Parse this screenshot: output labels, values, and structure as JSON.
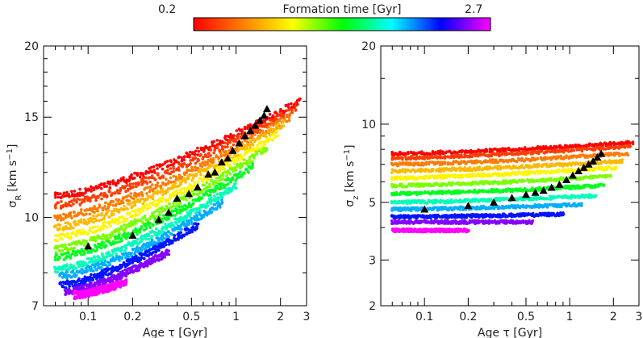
{
  "colorbar": {
    "label": "Formation time [Gyr]",
    "min_label": "0.2",
    "max_label": "2.7",
    "min": 0.2,
    "max": 2.7,
    "colors": [
      "#ff0000",
      "#ff8000",
      "#ffff00",
      "#00ff00",
      "#00ffff",
      "#0000ff",
      "#ff00ff"
    ]
  },
  "chart_data": [
    {
      "type": "scatter",
      "xlabel": "Age τ [Gyr]",
      "ylabel": "σ",
      "ylabel_sub": "R",
      "ylabel_unit": "[km s",
      "ylabel_exp": "−1",
      "ylabel_close": "]",
      "xscale": "log",
      "yscale": "log",
      "xlim": [
        0.05,
        3
      ],
      "ylim": [
        7,
        20
      ],
      "xticks": [
        {
          "v": 0.1,
          "label": "0.1"
        },
        {
          "v": 0.2,
          "label": "0.2"
        },
        {
          "v": 0.5,
          "label": "0.5"
        },
        {
          "v": 1,
          "label": "1"
        },
        {
          "v": 2,
          "label": "2"
        },
        {
          "v": 3,
          "label": "3"
        }
      ],
      "yticks": [
        {
          "v": 7,
          "label": "7"
        },
        {
          "v": 10,
          "label": "10"
        },
        {
          "v": 15,
          "label": "15"
        },
        {
          "v": 20,
          "label": "20"
        }
      ],
      "grid": false,
      "bands": [
        {
          "tf": 0.2,
          "x0": 0.06,
          "y0": 10.9,
          "x1": 2.7,
          "y1": 16.0
        },
        {
          "tf": 0.4,
          "x0": 0.06,
          "y0": 10.5,
          "x1": 2.5,
          "y1": 15.5
        },
        {
          "tf": 0.6,
          "x0": 0.06,
          "y0": 10.0,
          "x1": 2.3,
          "y1": 15.0
        },
        {
          "tf": 0.8,
          "x0": 0.06,
          "y0": 9.6,
          "x1": 2.1,
          "y1": 14.6
        },
        {
          "tf": 1.0,
          "x0": 0.06,
          "y0": 9.2,
          "x1": 1.9,
          "y1": 14.0
        },
        {
          "tf": 1.25,
          "x0": 0.06,
          "y0": 8.8,
          "x1": 1.6,
          "y1": 13.2
        },
        {
          "tf": 1.5,
          "x0": 0.06,
          "y0": 8.5,
          "x1": 1.3,
          "y1": 12.3
        },
        {
          "tf": 1.75,
          "x0": 0.06,
          "y0": 8.1,
          "x1": 1.0,
          "y1": 11.4
        },
        {
          "tf": 2.0,
          "x0": 0.065,
          "y0": 7.9,
          "x1": 0.8,
          "y1": 10.6
        },
        {
          "tf": 2.25,
          "x0": 0.065,
          "y0": 7.6,
          "x1": 0.55,
          "y1": 9.7
        },
        {
          "tf": 2.5,
          "x0": 0.07,
          "y0": 7.4,
          "x1": 0.35,
          "y1": 8.7
        },
        {
          "tf": 2.7,
          "x0": 0.08,
          "y0": 7.3,
          "x1": 0.18,
          "y1": 7.7
        }
      ],
      "triangles": {
        "x": [
          0.1,
          0.2,
          0.3,
          0.35,
          0.4,
          0.48,
          0.55,
          0.65,
          0.72,
          0.8,
          0.88,
          0.95,
          1.05,
          1.15,
          1.25,
          1.35,
          1.45,
          1.55,
          1.62
        ],
        "y": [
          8.9,
          9.3,
          9.9,
          10.2,
          10.8,
          11.0,
          11.3,
          11.9,
          12.0,
          12.5,
          12.7,
          13.1,
          13.5,
          13.9,
          14.2,
          14.5,
          14.8,
          15.1,
          15.5
        ]
      }
    },
    {
      "type": "scatter",
      "xlabel": "Age τ [Gyr]",
      "ylabel": "σ",
      "ylabel_sub": "z",
      "ylabel_unit": "[km s",
      "ylabel_exp": "−1",
      "ylabel_close": "]",
      "xscale": "log",
      "yscale": "log",
      "xlim": [
        0.05,
        3
      ],
      "ylim": [
        2,
        20
      ],
      "xticks": [
        {
          "v": 0.1,
          "label": "0.1"
        },
        {
          "v": 0.2,
          "label": "0.2"
        },
        {
          "v": 0.5,
          "label": "0.5"
        },
        {
          "v": 1,
          "label": "1"
        },
        {
          "v": 2,
          "label": "2"
        },
        {
          "v": 3,
          "label": "3"
        }
      ],
      "yticks": [
        {
          "v": 2,
          "label": "2"
        },
        {
          "v": 3,
          "label": "3"
        },
        {
          "v": 5,
          "label": "5"
        },
        {
          "v": 10,
          "label": "10"
        },
        {
          "v": 20,
          "label": "20"
        }
      ],
      "grid": false,
      "bands": [
        {
          "tf": 0.2,
          "x0": 0.06,
          "y0": 7.7,
          "x1": 2.7,
          "y1": 8.5
        },
        {
          "tf": 0.4,
          "x0": 0.06,
          "y0": 7.4,
          "x1": 2.6,
          "y1": 8.2
        },
        {
          "tf": 0.6,
          "x0": 0.06,
          "y0": 7.0,
          "x1": 2.5,
          "y1": 7.7
        },
        {
          "tf": 0.8,
          "x0": 0.06,
          "y0": 6.6,
          "x1": 2.3,
          "y1": 7.2
        },
        {
          "tf": 1.0,
          "x0": 0.06,
          "y0": 6.2,
          "x1": 2.1,
          "y1": 6.8
        },
        {
          "tf": 1.25,
          "x0": 0.06,
          "y0": 5.8,
          "x1": 1.9,
          "y1": 6.3
        },
        {
          "tf": 1.5,
          "x0": 0.06,
          "y0": 5.4,
          "x1": 1.7,
          "y1": 5.8
        },
        {
          "tf": 1.75,
          "x0": 0.06,
          "y0": 5.0,
          "x1": 1.5,
          "y1": 5.3
        },
        {
          "tf": 2.0,
          "x0": 0.06,
          "y0": 4.7,
          "x1": 1.2,
          "y1": 4.9
        },
        {
          "tf": 2.25,
          "x0": 0.06,
          "y0": 4.4,
          "x1": 0.9,
          "y1": 4.5
        },
        {
          "tf": 2.5,
          "x0": 0.06,
          "y0": 4.2,
          "x1": 0.55,
          "y1": 4.2
        },
        {
          "tf": 2.7,
          "x0": 0.06,
          "y0": 3.9,
          "x1": 0.2,
          "y1": 3.9
        }
      ],
      "triangles": {
        "x": [
          0.1,
          0.2,
          0.3,
          0.4,
          0.5,
          0.58,
          0.66,
          0.75,
          0.85,
          0.95,
          1.05,
          1.15,
          1.25,
          1.35,
          1.45,
          1.55,
          1.65
        ],
        "y": [
          4.7,
          4.85,
          5.0,
          5.2,
          5.35,
          5.45,
          5.55,
          5.7,
          5.85,
          6.1,
          6.35,
          6.6,
          6.8,
          7.0,
          7.2,
          7.45,
          7.7
        ]
      }
    }
  ]
}
